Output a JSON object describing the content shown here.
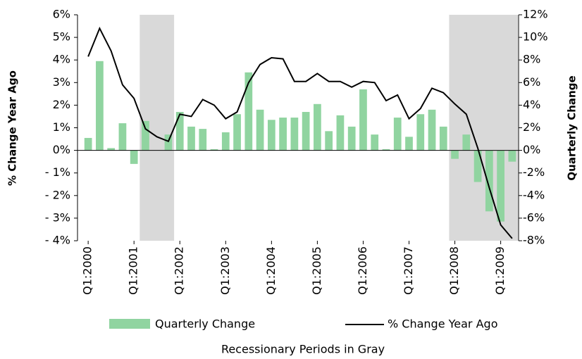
{
  "chart_data": {
    "type": "bar-line",
    "categories": [
      "Q1:2000",
      null,
      null,
      null,
      "Q1:2001",
      null,
      null,
      null,
      "Q1:2002",
      null,
      null,
      null,
      "Q1:2003",
      null,
      null,
      null,
      "Q1:2004",
      null,
      null,
      null,
      "Q1:2005",
      null,
      null,
      null,
      "Q1:2006",
      null,
      null,
      null,
      "Q1:2007",
      null,
      null,
      null,
      "Q1:2008",
      null,
      null,
      null,
      "Q1:2009",
      null
    ],
    "series": [
      {
        "name": "Quarterly Change",
        "type": "bar",
        "axis": "y2",
        "color": "#90d4a0",
        "values": [
          1.1,
          7.9,
          0.2,
          2.4,
          -1.2,
          2.6,
          0,
          1.4,
          3.4,
          2.1,
          1.9,
          0.1,
          1.6,
          3.2,
          6.9,
          3.6,
          2.7,
          2.9,
          2.9,
          3.4,
          4.1,
          1.7,
          3.1,
          2.1,
          5.4,
          1.4,
          0.1,
          2.9,
          1.2,
          3.2,
          3.6,
          2.1,
          -0.75,
          1.4,
          -2.8,
          -5.4,
          -6.3,
          -1.0
        ]
      },
      {
        "name": "% Change Year Ago",
        "type": "line",
        "axis": "y",
        "color": "#000000",
        "values": [
          4.15,
          5.4,
          4.4,
          2.9,
          2.3,
          0.95,
          0.6,
          0.4,
          1.6,
          1.5,
          2.25,
          2.0,
          1.4,
          1.7,
          3.0,
          3.8,
          4.1,
          4.05,
          3.05,
          3.05,
          3.4,
          3.05,
          3.05,
          2.8,
          3.05,
          3.0,
          2.2,
          2.45,
          1.4,
          1.85,
          2.75,
          2.55,
          2.05,
          1.6,
          0.1,
          -1.65,
          -3.3,
          -3.9
        ]
      }
    ],
    "ylabel": "% Change Year Ago",
    "y2label": "Quarterly Change",
    "ylim": [
      -4,
      6
    ],
    "yticks": [
      {
        "value": 6,
        "label": "6%"
      },
      {
        "value": 5,
        "label": "5%"
      },
      {
        "value": 4,
        "label": "4%"
      },
      {
        "value": 3,
        "label": "3%"
      },
      {
        "value": 2,
        "label": "2%"
      },
      {
        "value": 1,
        "label": "1%"
      },
      {
        "value": 0,
        "label": "0%"
      },
      {
        "value": -1,
        "label": "- 1%"
      },
      {
        "value": -2,
        "label": "- 2%"
      },
      {
        "value": -3,
        "label": "- 3%"
      },
      {
        "value": -4,
        "label": "- 4%"
      }
    ],
    "y2lim": [
      -8,
      12
    ],
    "y2ticks": [
      {
        "value": 12,
        "label": "12%"
      },
      {
        "value": 10,
        "label": "10%"
      },
      {
        "value": 8,
        "label": "8%"
      },
      {
        "value": 6,
        "label": "6%"
      },
      {
        "value": 4,
        "label": "4%"
      },
      {
        "value": 2,
        "label": "2%"
      },
      {
        "value": 0,
        "label": "0%"
      },
      {
        "value": -2,
        "label": "-2%"
      },
      {
        "value": -4,
        "label": "-4%"
      },
      {
        "value": -6,
        "label": "-6%"
      },
      {
        "value": -8,
        "label": "-8%"
      }
    ],
    "shaded_periods": [
      [
        4.5,
        7.5
      ],
      [
        31.5,
        37.5
      ]
    ],
    "shade_color": "#d9d9d9",
    "note": "Recessionary Periods in Gray"
  }
}
